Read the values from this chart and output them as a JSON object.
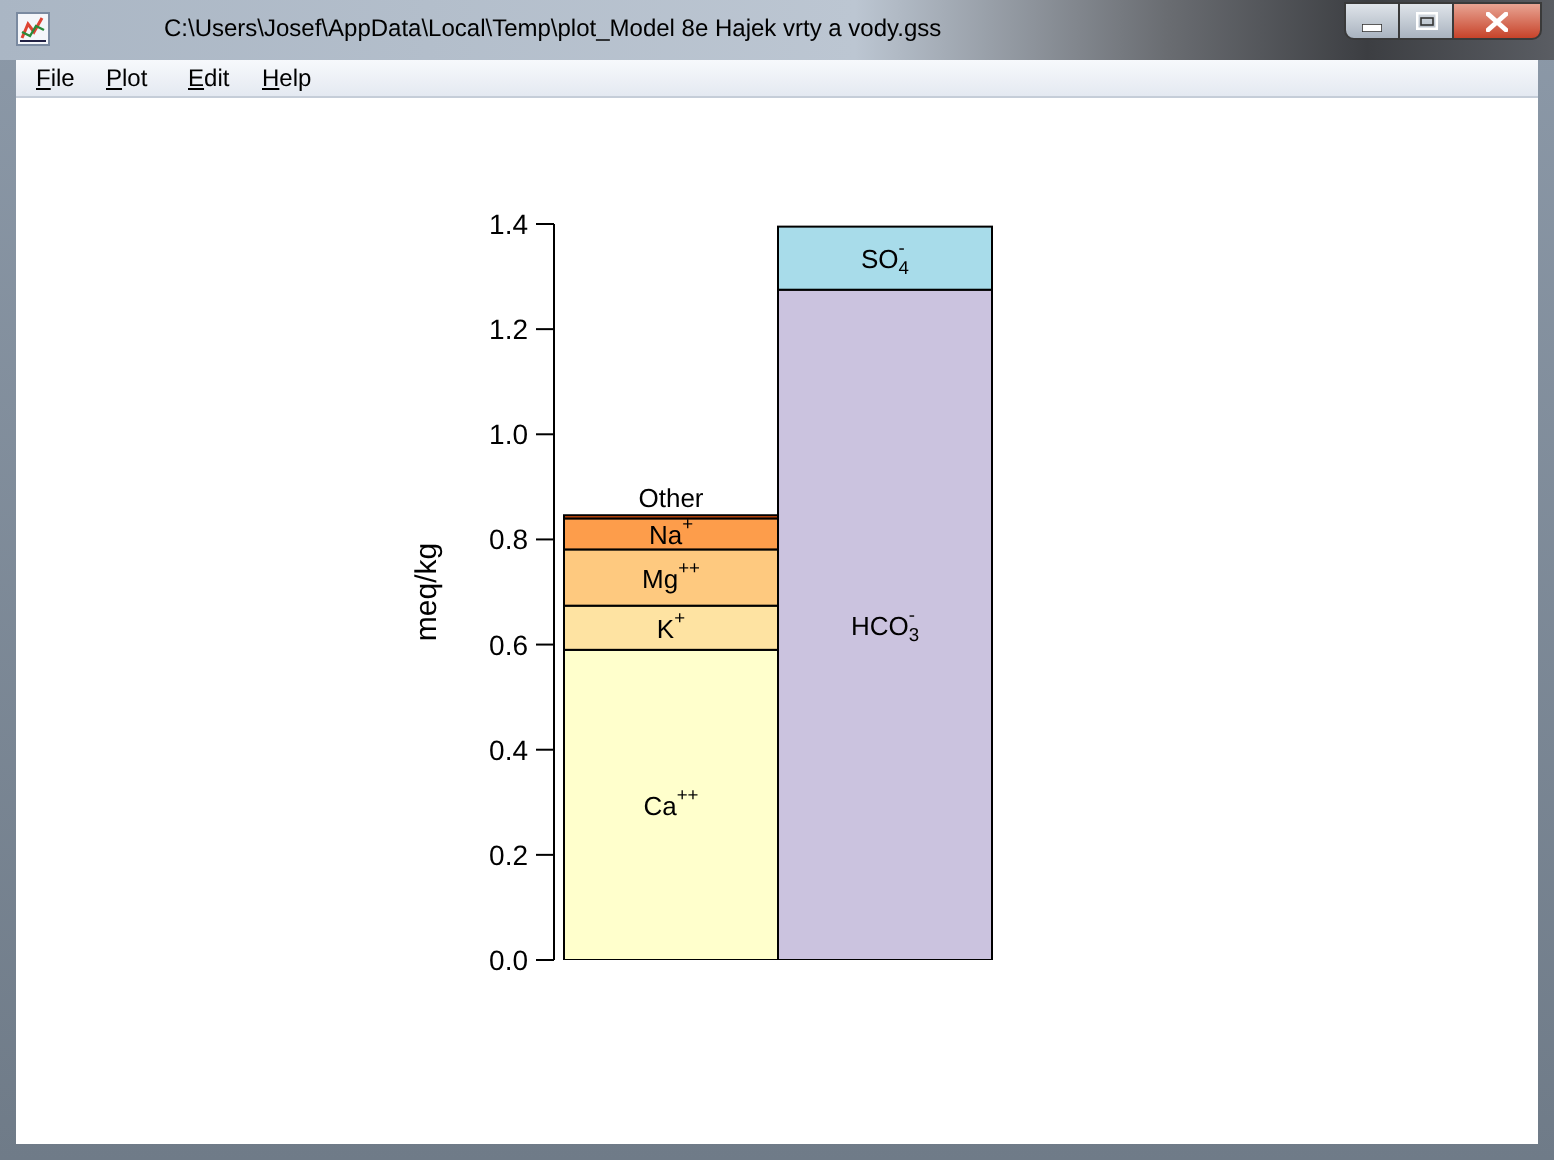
{
  "chart_data": {
    "type": "bar",
    "title": "C:\\Users\\Josef\\AppData\\Local\\Temp\\plot_Model 8e Hajek vrty a vody.gss",
    "annotations": [
      "File",
      "Plot",
      "Edit",
      "Help"
    ],
    "ylabel": "meq/kg",
    "categories": [
      null,
      null
    ],
    "stacked": true,
    "series": [
      {
        "name": "Ca$^{++}$",
        "color": "#ffffcc",
        "values": [
          0.59,
          null
        ]
      },
      {
        "name": "K$^{+}$",
        "color": "#fee3a2",
        "values": [
          0.084,
          null
        ]
      },
      {
        "name": "Mg$^{++}$",
        "color": "#fec97f",
        "values": [
          0.107,
          null
        ]
      },
      {
        "name": "Na$^{+}$",
        "color": "#fd9d4b",
        "values": [
          0.059,
          null
        ]
      },
      {
        "name": "Other",
        "color": "#e6550d",
        "values": [
          0.006,
          null
        ]
      },
      {
        "name": "HCO$_{3}$$^{-}$",
        "color": "#cbc3df",
        "values": [
          null,
          1.275
        ]
      },
      {
        "name": "SO$_{4}$$^{-}$",
        "color": "#a8dcea",
        "values": [
          null,
          0.12
        ]
      }
    ],
    "ylim": [
      0,
      1.4
    ],
    "yticks": [
      {
        "value": 0,
        "label": "0.0"
      },
      0.2,
      0.4,
      0.6,
      0.8,
      {
        "value": 1,
        "label": "1.0"
      },
      1.2,
      1.4
    ],
    "tick_labels": "y"
  }
}
